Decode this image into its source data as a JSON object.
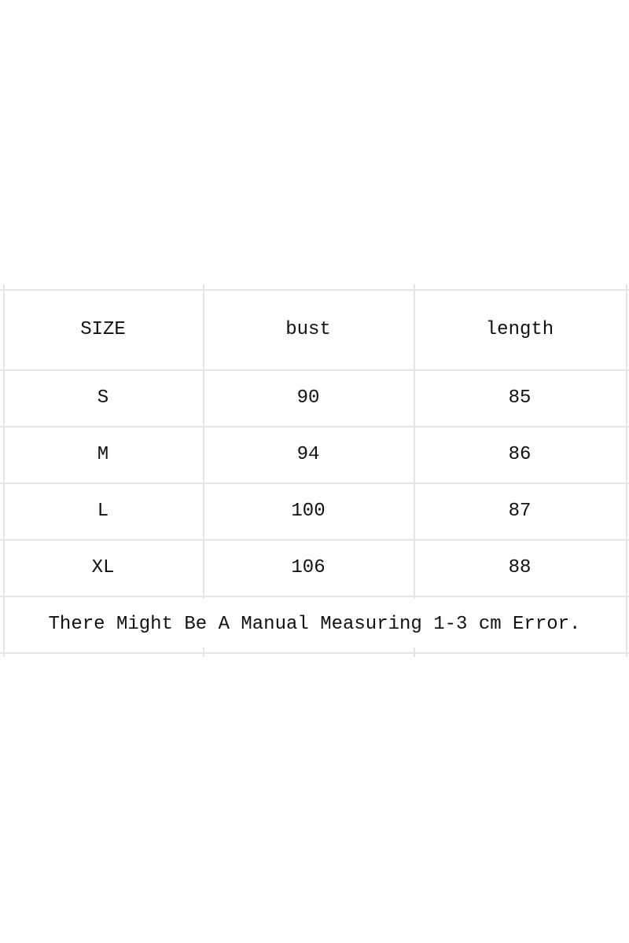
{
  "table": {
    "headers": [
      "SIZE",
      "bust",
      "length"
    ],
    "rows": [
      [
        "S",
        "90",
        "85"
      ],
      [
        "M",
        "94",
        "86"
      ],
      [
        "L",
        "100",
        "87"
      ],
      [
        "XL",
        "106",
        "88"
      ]
    ],
    "note": "There Might Be A Manual Measuring 1-3 cm Error."
  }
}
